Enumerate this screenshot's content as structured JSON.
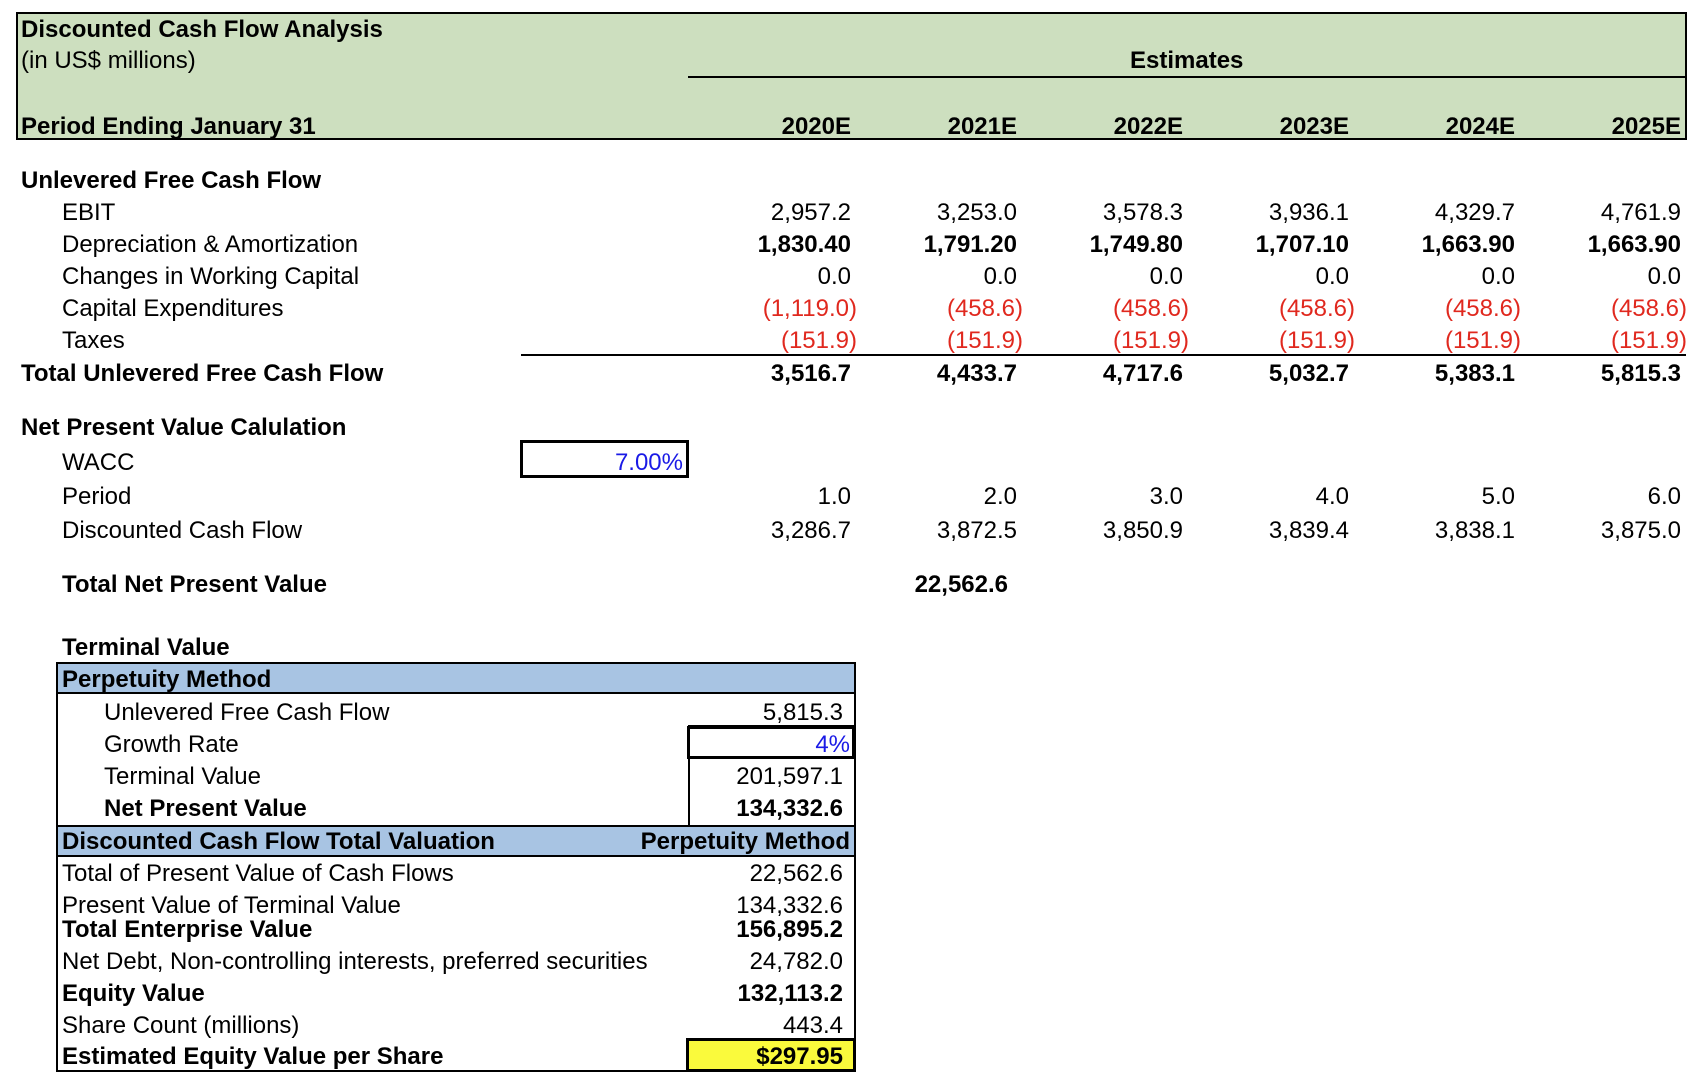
{
  "title": "Discounted Cash Flow Analysis",
  "units": "(in US$ millions)",
  "estimates_label": "Estimates",
  "period_label": "Period Ending January 31",
  "years": [
    "2020E",
    "2021E",
    "2022E",
    "2023E",
    "2024E",
    "2025E"
  ],
  "ufcf": {
    "heading": "Unlevered Free Cash Flow",
    "rows": [
      {
        "label": "EBIT",
        "values": [
          "2,957.2",
          "3,253.0",
          "3,578.3",
          "3,936.1",
          "4,329.7",
          "4,761.9"
        ]
      },
      {
        "label": "Depreciation & Amortization",
        "values": [
          "1,830.40",
          "1,791.20",
          "1,749.80",
          "1,707.10",
          "1,663.90",
          "1,663.90"
        ]
      },
      {
        "label": "Changes in Working Capital",
        "values": [
          "0.0",
          "0.0",
          "0.0",
          "0.0",
          "0.0",
          "0.0"
        ]
      },
      {
        "label": "Capital Expenditures",
        "values": [
          "(1,119.0)",
          "(458.6)",
          "(458.6)",
          "(458.6)",
          "(458.6)",
          "(458.6)"
        ]
      },
      {
        "label": "Taxes",
        "values": [
          "(151.9)",
          "(151.9)",
          "(151.9)",
          "(151.9)",
          "(151.9)",
          "(151.9)"
        ]
      }
    ],
    "total_label": "Total Unlevered Free Cash Flow",
    "total_values": [
      "3,516.7",
      "4,433.7",
      "4,717.6",
      "5,032.7",
      "5,383.1",
      "5,815.3"
    ]
  },
  "npv": {
    "heading": "Net Present Value Calulation",
    "wacc_label": "WACC",
    "wacc_value": "7.00%",
    "period_label": "Period",
    "period_values": [
      "1.0",
      "2.0",
      "3.0",
      "4.0",
      "5.0",
      "6.0"
    ],
    "dcf_label": "Discounted Cash Flow",
    "dcf_values": [
      "3,286.7",
      "3,872.5",
      "3,850.9",
      "3,839.4",
      "3,838.1",
      "3,875.0"
    ],
    "total_label": "Total Net Present Value",
    "total_value": "22,562.6"
  },
  "terminal": {
    "heading": "Terminal Value",
    "method_header": "Perpetuity Method",
    "ufcf_label": "Unlevered Free Cash Flow",
    "ufcf_value": "5,815.3",
    "growth_label": "Growth Rate",
    "growth_value": "4%",
    "tv_label": "Terminal Value",
    "tv_value": "201,597.1",
    "npv_label": "Net Present Value",
    "npv_value": "134,332.6"
  },
  "valuation": {
    "header_left": "Discounted Cash Flow Total Valuation",
    "header_right": "Perpetuity Method",
    "pv_cf_label": "Total of Present Value of Cash Flows",
    "pv_cf_value": "22,562.6",
    "pv_tv_label": "Present Value of Terminal Value",
    "pv_tv_value": "134,332.6",
    "ev_label": "Total Enterprise Value",
    "ev_value": "156,895.2",
    "net_debt_label": "Net Debt, Non-controlling interests, preferred securities",
    "net_debt_value": "24,782.0",
    "equity_label": "Equity Value",
    "equity_value": "132,113.2",
    "shares_label": "Share Count (millions)",
    "shares_value": "443.4",
    "per_share_label": "Estimated Equity Value per Share",
    "per_share_value": "$297.95"
  },
  "colors": {
    "header_green": "#cddfbf",
    "section_blue": "#a8c4e3",
    "highlight_yellow": "#fafa3c",
    "negative_red": "#e0281e",
    "input_blue": "#1a1ae6"
  }
}
